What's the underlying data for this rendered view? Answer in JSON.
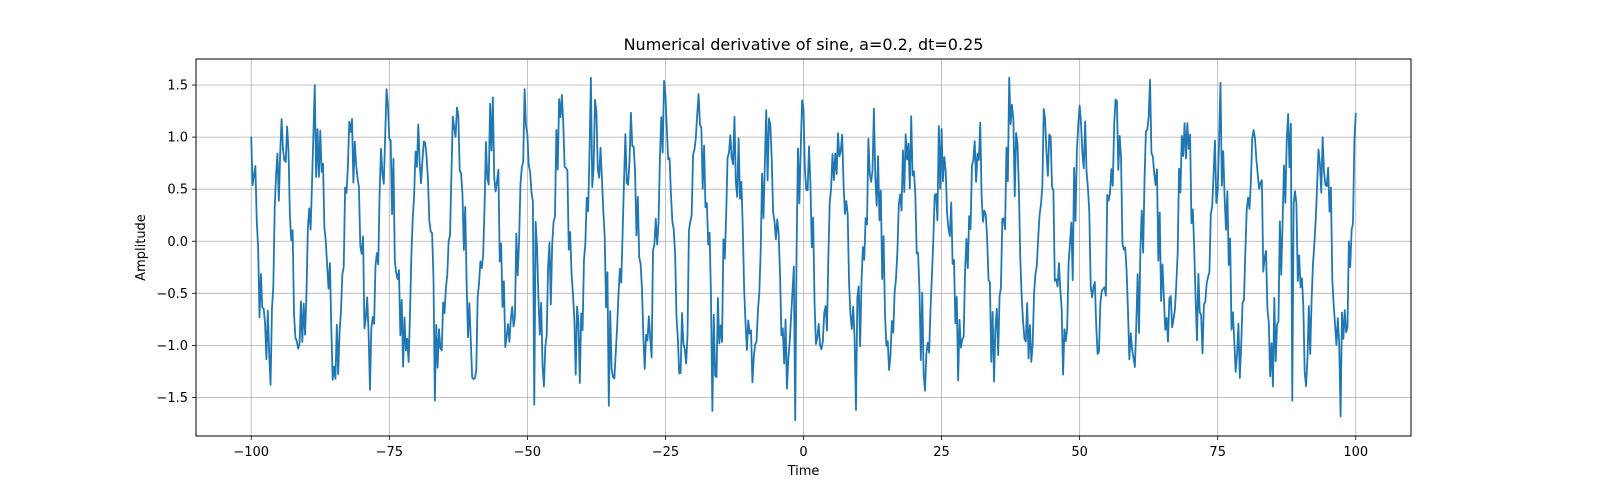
{
  "chart_data": {
    "type": "line",
    "title": "Numerical derivative of sine, a=0.2, dt=0.25",
    "xlabel": "Time",
    "ylabel": "Amplitude",
    "xlim": [
      -110,
      110
    ],
    "ylim": [
      -1.87,
      1.75
    ],
    "xticks": [
      -100,
      -75,
      -50,
      -25,
      0,
      25,
      50,
      75,
      100
    ],
    "xtick_labels": [
      "−100",
      "−75",
      "−50",
      "−25",
      "0",
      "25",
      "50",
      "75",
      "100"
    ],
    "yticks": [
      -1.5,
      -1.0,
      -0.5,
      0.0,
      0.5,
      1.0,
      1.5
    ],
    "ytick_labels": [
      "−1.5",
      "−1.0",
      "−0.5",
      "0.0",
      "0.5",
      "1.0",
      "1.5"
    ],
    "grid": true,
    "line_color": "#1f77b4",
    "series": [
      {
        "x_start": -100,
        "x_step": 0.25,
        "x_end": 100,
        "approx_values_note_free": true,
        "clean_signal": "cos(t)",
        "noise_amplitude": 0.2,
        "peaks": [
          {
            "x": -88.6,
            "y": 1.5
          },
          {
            "x": -75.6,
            "y": 1.46
          },
          {
            "x": -50.6,
            "y": 1.46
          },
          {
            "x": -38.4,
            "y": 1.57
          },
          {
            "x": -25.2,
            "y": 1.54
          },
          {
            "x": 37.2,
            "y": 1.57
          },
          {
            "x": 62.8,
            "y": 1.55
          },
          {
            "x": 75.4,
            "y": 1.52
          }
        ],
        "troughs": [
          {
            "x": -96.4,
            "y": -1.38
          },
          {
            "x": -66.8,
            "y": -1.53
          },
          {
            "x": -48.8,
            "y": -1.57
          },
          {
            "x": -35.2,
            "y": -1.58
          },
          {
            "x": -16.4,
            "y": -1.63
          },
          {
            "x": -1.6,
            "y": -1.72
          },
          {
            "x": 9.4,
            "y": -1.62
          },
          {
            "x": 88.4,
            "y": -1.53
          },
          {
            "x": 97.2,
            "y": -1.68
          }
        ]
      }
    ]
  }
}
